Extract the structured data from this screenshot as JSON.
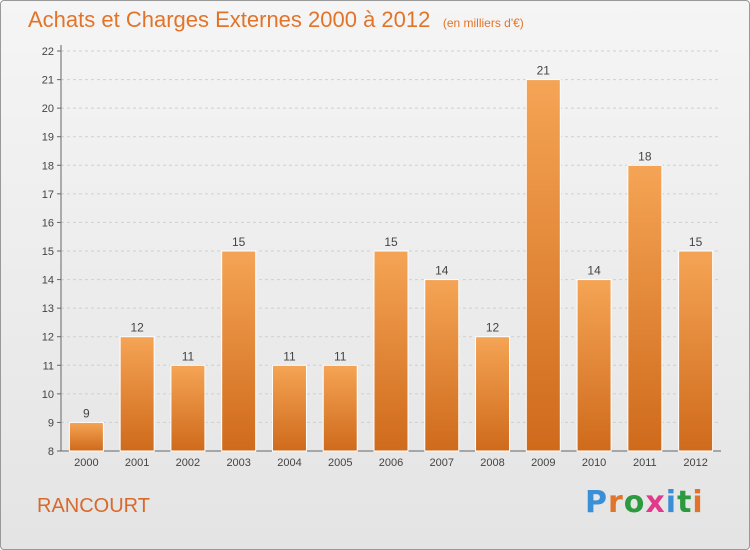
{
  "title": "Achats et Charges Externes 2000 à 2012",
  "unit_note": "(en milliers d'€)",
  "commune": "RANCOURT",
  "brand": {
    "letters": [
      "P",
      "r",
      "o",
      "x",
      "i",
      "t",
      "i"
    ],
    "colors": [
      "#3a8fd6",
      "#e1742b",
      "#2d9a3f",
      "#e23a8b",
      "#3a8fd6",
      "#2d9a3f",
      "#e1742b"
    ]
  },
  "colors": {
    "bar_top": "#f5a455",
    "bar_bottom": "#cf6a1b",
    "accent": "#e2742a"
  },
  "chart_data": {
    "type": "bar",
    "categories": [
      "2000",
      "2001",
      "2002",
      "2003",
      "2004",
      "2005",
      "2006",
      "2007",
      "2008",
      "2009",
      "2010",
      "2011",
      "2012"
    ],
    "values": [
      9,
      12,
      11,
      15,
      11,
      11,
      15,
      14,
      12,
      21,
      14,
      18,
      15
    ],
    "ylim": [
      8,
      22
    ],
    "yticks": [
      8,
      9,
      10,
      11,
      12,
      13,
      14,
      15,
      16,
      17,
      18,
      19,
      20,
      21,
      22
    ],
    "grid": "horizontal dashed",
    "data_labels": true
  }
}
